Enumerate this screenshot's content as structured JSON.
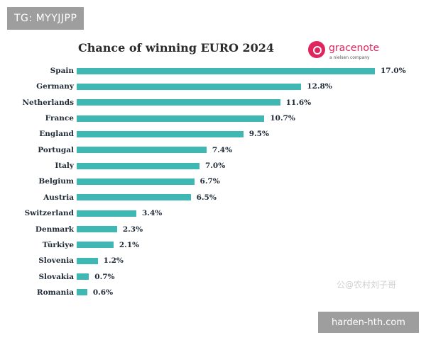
{
  "overlay_top": "TG: MYYJJPP",
  "overlay_bottom": "harden-hth.com",
  "watermark": "公@农村刘子哥",
  "logo": {
    "name": "gracenote",
    "sub": "a nielsen company",
    "color": "#e0245e"
  },
  "colors": {
    "bar": "#3fb8b3",
    "text": "#1f2a36"
  },
  "chart_data": {
    "type": "bar",
    "orientation": "horizontal",
    "title": "Chance of winning EURO 2024",
    "categories": [
      "Spain",
      "Germany",
      "Netherlands",
      "France",
      "England",
      "Portugal",
      "Italy",
      "Belgium",
      "Austria",
      "Switzerland",
      "Denmark",
      "Türkiye",
      "Slovenia",
      "Slovakia",
      "Romania"
    ],
    "values": [
      17.0,
      12.8,
      11.6,
      10.7,
      9.5,
      7.4,
      7.0,
      6.7,
      6.5,
      3.4,
      2.3,
      2.1,
      1.2,
      0.7,
      0.6
    ],
    "value_labels": [
      "17.0%",
      "12.8%",
      "11.6%",
      "10.7%",
      "9.5%",
      "7.4%",
      "7.0%",
      "6.7%",
      "6.5%",
      "3.4%",
      "2.3%",
      "2.1%",
      "1.2%",
      "0.7%",
      "0.6%"
    ],
    "xlim": [
      0,
      17.0
    ],
    "grid": false,
    "legend": "none"
  }
}
